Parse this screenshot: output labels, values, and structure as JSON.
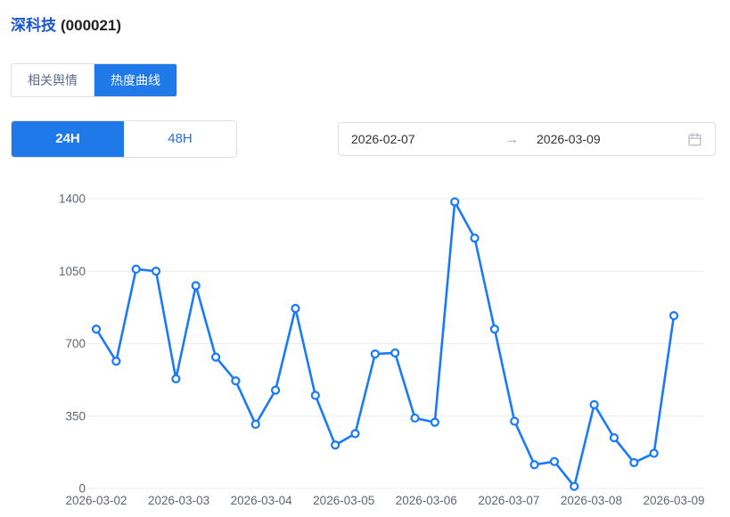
{
  "header": {
    "title_name": "深科技",
    "title_code": "(000021)"
  },
  "tabs": [
    {
      "label": "相关舆情",
      "active": false
    },
    {
      "label": "热度曲线",
      "active": true
    }
  ],
  "range_toggle": [
    {
      "label": "24H",
      "active": true
    },
    {
      "label": "48H",
      "active": false
    }
  ],
  "date_range": {
    "start": "2026-02-07",
    "end": "2026-03-09",
    "arrow": "→"
  },
  "colors": {
    "accent": "#2079e8",
    "title_blue": "#1b55cf",
    "line": "#1a7af8",
    "grid": "#e9edf3"
  },
  "chart_data": {
    "type": "line",
    "x_labels": [
      "2026-03-02",
      "2026-03-03",
      "2026-03-04",
      "2026-03-05",
      "2026-03-06",
      "2026-03-07",
      "2026-03-08",
      "2026-03-09"
    ],
    "y_ticks": [
      0,
      350,
      700,
      1050,
      1400
    ],
    "ylim": [
      0,
      1400
    ],
    "xlabel": "",
    "ylabel": "",
    "legend": "none",
    "grid": "horizontal",
    "marker": "hollow-circle",
    "line_color": "#1a7af8",
    "values": [
      770,
      615,
      1060,
      1050,
      530,
      980,
      635,
      520,
      310,
      475,
      870,
      450,
      210,
      265,
      650,
      655,
      340,
      320,
      1385,
      1210,
      770,
      325,
      115,
      130,
      10,
      405,
      245,
      125,
      170,
      835
    ]
  }
}
